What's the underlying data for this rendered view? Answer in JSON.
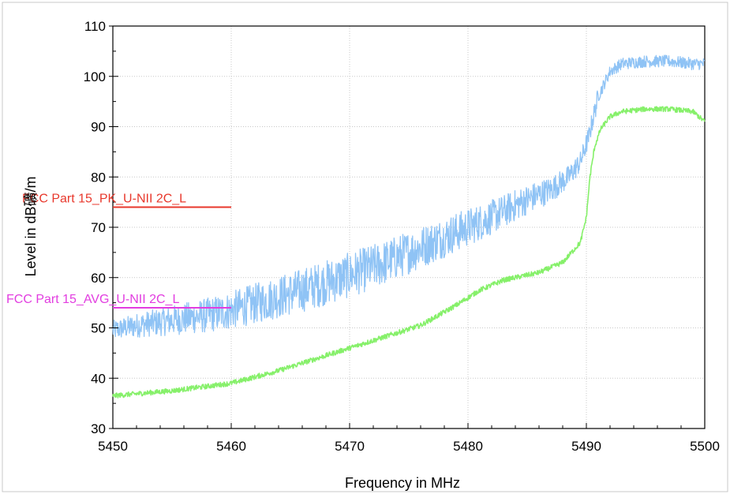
{
  "chart_data": {
    "type": "line",
    "xlabel": "Frequency in MHz",
    "ylabel": "Level in dB礦/m",
    "xlim": [
      5450,
      5500
    ],
    "ylim": [
      30,
      110
    ],
    "x_ticks": [
      5450,
      5460,
      5470,
      5480,
      5490,
      5500
    ],
    "y_ticks": [
      30,
      40,
      50,
      60,
      70,
      80,
      90,
      100,
      110
    ],
    "x_tick_labels": [
      "5450",
      "5460",
      "5470",
      "5480",
      "5490",
      "5500"
    ],
    "y_tick_labels": [
      "30",
      "40",
      "50",
      "60",
      "70",
      "80",
      "90",
      "100",
      "110"
    ],
    "grid": true,
    "series": [
      {
        "color": "#8fc3f5",
        "x": [
          5450,
          5452,
          5455,
          5458,
          5460,
          5463,
          5466,
          5470,
          5473,
          5476,
          5479,
          5482,
          5485,
          5487,
          5488.5,
          5489.5,
          5490.2,
          5491,
          5492,
          5493,
          5495,
          5497,
          5499,
          5500
        ],
        "values": [
          49.5,
          50.5,
          51.5,
          52.5,
          53.5,
          55.5,
          57.5,
          60.5,
          63,
          66,
          69,
          72,
          75.5,
          77.5,
          80,
          83,
          88,
          96,
          101,
          102.5,
          103,
          103,
          102.5,
          102.5
        ],
        "noise": 2.5
      },
      {
        "color": "#86f06a",
        "x": [
          5450,
          5455,
          5460,
          5464,
          5468,
          5472,
          5476,
          5479,
          5481,
          5483,
          5486,
          5488,
          5489.5,
          5490,
          5490.3,
          5490.7,
          5491.2,
          5492,
          5493,
          5495,
          5497,
          5499,
          5500
        ],
        "values": [
          36.5,
          37.5,
          39,
          41.5,
          44.5,
          47.5,
          50.5,
          54.5,
          57.5,
          59.5,
          61,
          63,
          67,
          72,
          80,
          86,
          89.5,
          92,
          93,
          93.5,
          93.5,
          93,
          91
        ],
        "noise": 0.5
      }
    ],
    "limit_lines": [
      {
        "label": "FCC Part 15_PK_U-NII 2C_L",
        "value": 74,
        "x_start": 5450,
        "x_end": 5460,
        "color": "#e8382c"
      },
      {
        "label": "FCC Part 15_AVG_U-NII 2C_L",
        "value": 54,
        "x_start": 5450,
        "x_end": 5460,
        "color": "#e23de0"
      }
    ]
  }
}
